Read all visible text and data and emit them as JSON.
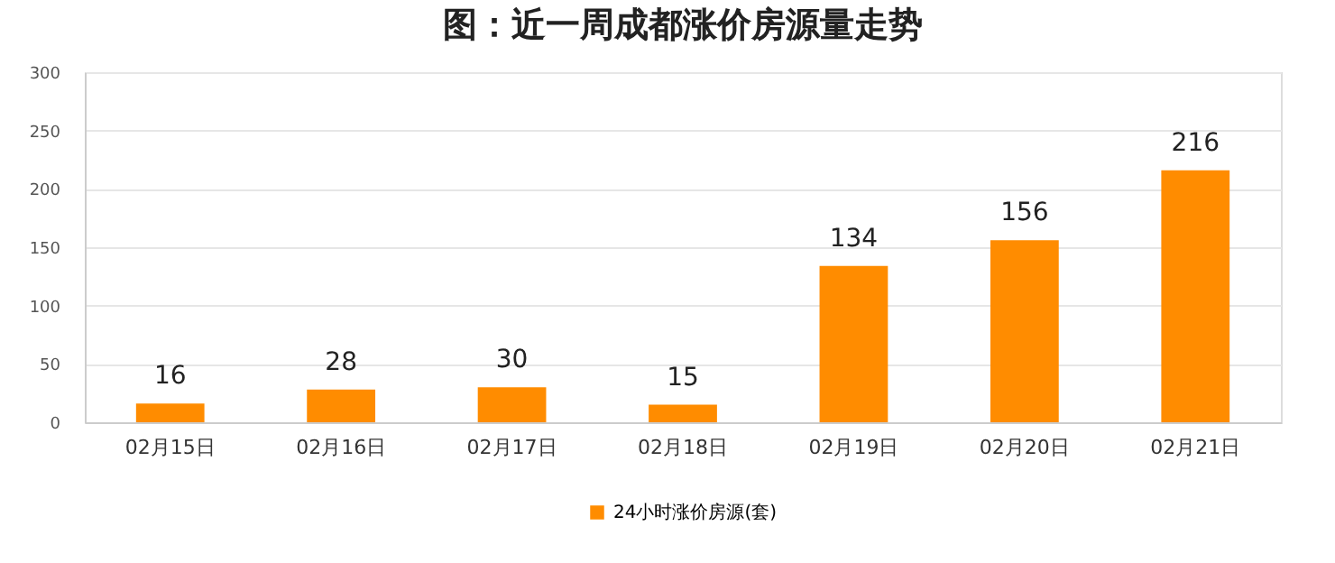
{
  "chart_data": {
    "type": "bar",
    "title": "图：近一周成都涨价房源量走势",
    "categories": [
      "02月15日",
      "02月16日",
      "02月17日",
      "02月18日",
      "02月19日",
      "02月20日",
      "02月21日"
    ],
    "series": [
      {
        "name": "24小时涨价房源(套)",
        "color": "#ff8c00",
        "values": [
          16,
          28,
          30,
          15,
          134,
          156,
          216
        ]
      }
    ],
    "ylim": [
      0,
      300
    ],
    "yticks": [
      0,
      50,
      100,
      150,
      200,
      250,
      300
    ],
    "grid": "y",
    "legend": "bottom",
    "data_labels": true
  }
}
